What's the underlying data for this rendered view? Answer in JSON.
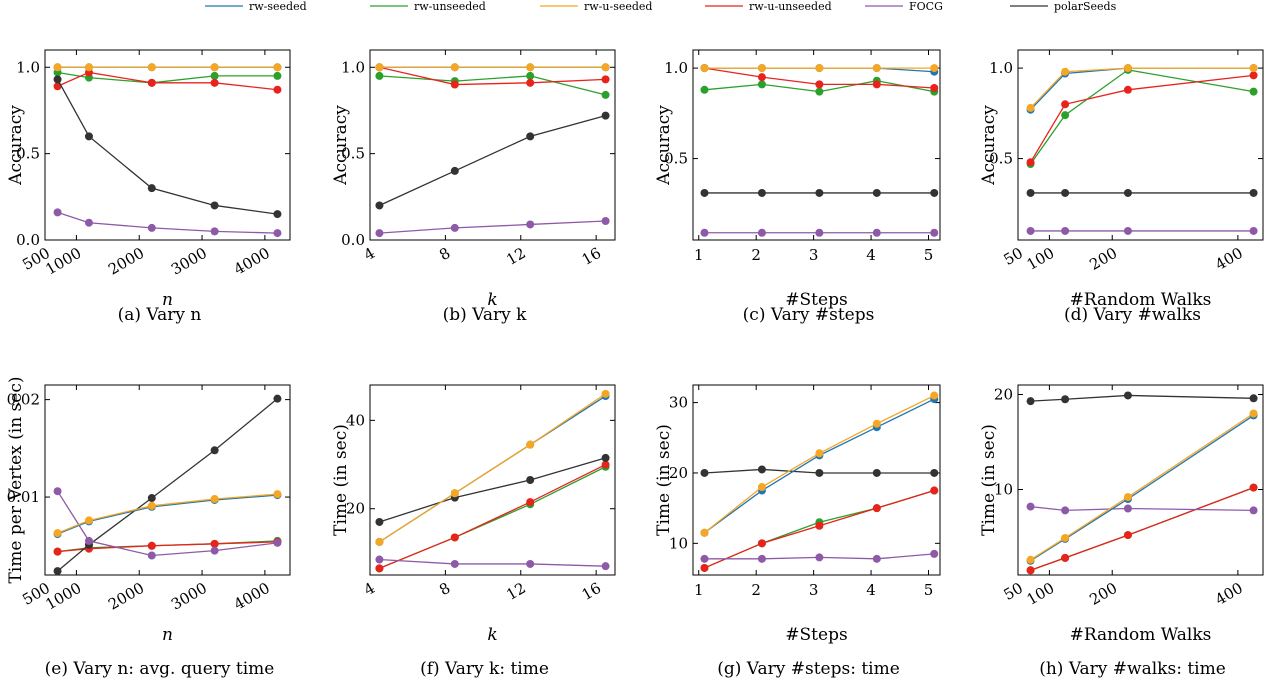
{
  "series_styles": [
    {
      "name": "rw-seeded",
      "color": "#1f77b4"
    },
    {
      "name": "rw-unseeded",
      "color": "#2ca02c"
    },
    {
      "name": "rw-u-seeded",
      "color": "#f5a623"
    },
    {
      "name": "rw-u-unseeded",
      "color": "#e8231c"
    },
    {
      "name": "FOCG",
      "color": "#8e5aa8"
    },
    {
      "name": "polarSeeds",
      "color": "#333333"
    }
  ],
  "chart_data": [
    {
      "type": "line",
      "caption": "(a) Vary n",
      "x": [
        700,
        1200,
        2200,
        3200,
        4200
      ],
      "xlim": [
        500,
        4400
      ],
      "xticks": [
        500,
        1000,
        2000,
        3000,
        4000
      ],
      "xtick_rotate": true,
      "ylim": [
        0,
        1.1
      ],
      "yticks": [
        0.0,
        0.5,
        1.0
      ],
      "ytick_labels": [
        "0.0",
        "0.5",
        "1.0"
      ],
      "xlabel": "n",
      "ylabel": "Accuracy",
      "series": [
        {
          "name": "rw-seeded",
          "values": [
            1.0,
            1.0,
            1.0,
            1.0,
            1.0
          ]
        },
        {
          "name": "rw-unseeded",
          "values": [
            0.97,
            0.94,
            0.91,
            0.95,
            0.95
          ]
        },
        {
          "name": "rw-u-seeded",
          "values": [
            1.0,
            1.0,
            1.0,
            1.0,
            1.0
          ]
        },
        {
          "name": "rw-u-unseeded",
          "values": [
            0.89,
            0.97,
            0.91,
            0.91,
            0.87
          ]
        },
        {
          "name": "FOCG",
          "values": [
            0.16,
            0.1,
            0.07,
            0.05,
            0.04
          ]
        },
        {
          "name": "polarSeeds",
          "values": [
            0.93,
            0.6,
            0.3,
            0.2,
            0.15
          ]
        }
      ]
    },
    {
      "type": "line",
      "caption": "(b) Vary k",
      "x": [
        4.5,
        8.5,
        12.5,
        16.5
      ],
      "xlim": [
        4,
        17
      ],
      "xticks": [
        4,
        8,
        12,
        16
      ],
      "xtick_rotate": true,
      "ylim": [
        0,
        1.1
      ],
      "yticks": [
        0.0,
        0.5,
        1.0
      ],
      "ytick_labels": [
        "0.0",
        "0.5",
        "1.0"
      ],
      "xlabel": "k",
      "ylabel": "Accuracy",
      "series": [
        {
          "name": "rw-seeded",
          "values": [
            1.0,
            1.0,
            1.0,
            1.0
          ]
        },
        {
          "name": "rw-unseeded",
          "values": [
            0.95,
            0.92,
            0.95,
            0.84
          ]
        },
        {
          "name": "rw-u-seeded",
          "values": [
            1.0,
            1.0,
            1.0,
            1.0
          ]
        },
        {
          "name": "rw-u-unseeded",
          "values": [
            1.0,
            0.9,
            0.91,
            0.93
          ]
        },
        {
          "name": "FOCG",
          "values": [
            0.04,
            0.07,
            0.09,
            0.11
          ]
        },
        {
          "name": "polarSeeds",
          "values": [
            0.2,
            0.4,
            0.6,
            0.72
          ]
        }
      ]
    },
    {
      "type": "line",
      "caption": "(c) Vary #steps",
      "x": [
        1.1,
        2.1,
        3.1,
        4.1,
        5.1
      ],
      "xlim": [
        0.9,
        5.2
      ],
      "xticks": [
        1,
        2,
        3,
        4,
        5
      ],
      "xtick_rotate": false,
      "ylim": [
        0.05,
        1.1
      ],
      "yticks": [
        0.5,
        1.0
      ],
      "ytick_labels": [
        "0.5",
        "1.0"
      ],
      "xlabel": "#Steps",
      "ylabel": "Accuracy",
      "series": [
        {
          "name": "rw-seeded",
          "values": [
            1.0,
            1.0,
            1.0,
            1.0,
            0.98
          ]
        },
        {
          "name": "rw-unseeded",
          "values": [
            0.88,
            0.91,
            0.87,
            0.93,
            0.87
          ]
        },
        {
          "name": "rw-u-seeded",
          "values": [
            1.0,
            1.0,
            1.0,
            1.0,
            1.0
          ]
        },
        {
          "name": "rw-u-unseeded",
          "values": [
            1.0,
            0.95,
            0.91,
            0.91,
            0.89
          ]
        },
        {
          "name": "FOCG",
          "values": [
            0.09,
            0.09,
            0.09,
            0.09,
            0.09
          ]
        },
        {
          "name": "polarSeeds",
          "values": [
            0.31,
            0.31,
            0.31,
            0.31,
            0.31
          ]
        }
      ]
    },
    {
      "type": "line",
      "caption": "(d) Vary #walks",
      "x": [
        70,
        125,
        225,
        425
      ],
      "xlim": [
        50,
        440
      ],
      "xticks": [
        50,
        100,
        200,
        400
      ],
      "xtick_rotate": true,
      "ylim": [
        0.05,
        1.1
      ],
      "yticks": [
        0.5,
        1.0
      ],
      "ytick_labels": [
        "0.5",
        "1.0"
      ],
      "xlabel": "#Random Walks",
      "ylabel": "Accuracy",
      "series": [
        {
          "name": "rw-seeded",
          "values": [
            0.77,
            0.97,
            1.0,
            1.0
          ]
        },
        {
          "name": "rw-unseeded",
          "values": [
            0.47,
            0.74,
            0.99,
            0.87
          ]
        },
        {
          "name": "rw-u-seeded",
          "values": [
            0.78,
            0.98,
            1.0,
            1.0
          ]
        },
        {
          "name": "rw-u-unseeded",
          "values": [
            0.48,
            0.8,
            0.88,
            0.96
          ]
        },
        {
          "name": "FOCG",
          "values": [
            0.1,
            0.1,
            0.1,
            0.1
          ]
        },
        {
          "name": "polarSeeds",
          "values": [
            0.31,
            0.31,
            0.31,
            0.31
          ]
        }
      ]
    },
    {
      "type": "line",
      "caption": "(e) Vary n: avg. query time",
      "x": [
        700,
        1200,
        2200,
        3200,
        4200
      ],
      "xlim": [
        500,
        4400
      ],
      "xticks": [
        500,
        1000,
        2000,
        3000,
        4000
      ],
      "xtick_rotate": true,
      "ylim": [
        0.002,
        0.0215
      ],
      "yticks": [
        0.01,
        0.02
      ],
      "ytick_labels": [
        "0.01",
        "0.02"
      ],
      "xlabel": "n",
      "ylabel": "Time per Vertex (in sec)",
      "series": [
        {
          "name": "rw-seeded",
          "values": [
            0.0062,
            0.0075,
            0.009,
            0.0097,
            0.0102
          ]
        },
        {
          "name": "rw-unseeded",
          "values": [
            0.0044,
            0.0048,
            0.005,
            0.0052,
            0.0055
          ]
        },
        {
          "name": "rw-u-seeded",
          "values": [
            0.0063,
            0.0076,
            0.0091,
            0.0098,
            0.0103
          ]
        },
        {
          "name": "rw-u-unseeded",
          "values": [
            0.0044,
            0.0047,
            0.005,
            0.0052,
            0.0054
          ]
        },
        {
          "name": "FOCG",
          "values": [
            0.0106,
            0.0055,
            0.004,
            0.0045,
            0.0053
          ]
        },
        {
          "name": "polarSeeds",
          "values": [
            0.0024,
            0.0051,
            0.0099,
            0.0148,
            0.0201
          ]
        }
      ]
    },
    {
      "type": "line",
      "caption": "(f) Vary k: time",
      "x": [
        4.5,
        8.5,
        12.5,
        16.5
      ],
      "xlim": [
        4,
        17
      ],
      "xticks": [
        4,
        8,
        12,
        16
      ],
      "xtick_rotate": true,
      "ylim": [
        5,
        48
      ],
      "yticks": [
        20,
        40
      ],
      "ytick_labels": [
        "20",
        "40"
      ],
      "xlabel": "k",
      "ylabel": "Time (in sec)",
      "series": [
        {
          "name": "rw-seeded",
          "values": [
            12.5,
            23.5,
            34.5,
            45.5
          ]
        },
        {
          "name": "rw-unseeded",
          "values": [
            6.5,
            13.5,
            21,
            29.5
          ]
        },
        {
          "name": "rw-u-seeded",
          "values": [
            12.5,
            23.5,
            34.5,
            46
          ]
        },
        {
          "name": "rw-u-unseeded",
          "values": [
            6.5,
            13.5,
            21.5,
            30
          ]
        },
        {
          "name": "FOCG",
          "values": [
            8.5,
            7.5,
            7.5,
            7
          ]
        },
        {
          "name": "polarSeeds",
          "values": [
            17,
            22.5,
            26.5,
            31.5
          ]
        }
      ]
    },
    {
      "type": "line",
      "caption": "(g) Vary #steps: time",
      "x": [
        1.1,
        2.1,
        3.1,
        4.1,
        5.1
      ],
      "xlim": [
        0.9,
        5.2
      ],
      "xticks": [
        1,
        2,
        3,
        4,
        5
      ],
      "xtick_rotate": false,
      "ylim": [
        5.5,
        32.5
      ],
      "yticks": [
        10,
        20,
        30
      ],
      "ytick_labels": [
        "10",
        "20",
        "30"
      ],
      "xlabel": "#Steps",
      "ylabel": "Time (in sec)",
      "series": [
        {
          "name": "rw-seeded",
          "values": [
            11.5,
            17.5,
            22.5,
            26.5,
            30.5
          ]
        },
        {
          "name": "rw-unseeded",
          "values": [
            6.5,
            10,
            13,
            15,
            17.5
          ]
        },
        {
          "name": "rw-u-seeded",
          "values": [
            11.5,
            18,
            22.8,
            27,
            31
          ]
        },
        {
          "name": "rw-u-unseeded",
          "values": [
            6.5,
            10,
            12.5,
            15,
            17.5
          ]
        },
        {
          "name": "FOCG",
          "values": [
            7.8,
            7.8,
            8,
            7.8,
            8.5
          ]
        },
        {
          "name": "polarSeeds",
          "values": [
            20,
            20.5,
            20,
            20,
            20
          ]
        }
      ]
    },
    {
      "type": "line",
      "caption": "(h) Vary #walks: time",
      "x": [
        70,
        125,
        225,
        425
      ],
      "xlim": [
        50,
        440
      ],
      "xticks": [
        50,
        100,
        200,
        400
      ],
      "xtick_rotate": true,
      "ylim": [
        1,
        21
      ],
      "yticks": [
        10,
        20
      ],
      "ytick_labels": [
        "10",
        "20"
      ],
      "xlabel": "#Random Walks",
      "ylabel": "Time (in sec)",
      "series": [
        {
          "name": "rw-seeded",
          "values": [
            2.5,
            4.8,
            9,
            17.8
          ]
        },
        {
          "name": "rw-unseeded",
          "values": [
            1.5,
            2.8,
            5.2,
            10.2
          ]
        },
        {
          "name": "rw-u-seeded",
          "values": [
            2.6,
            4.9,
            9.2,
            18
          ]
        },
        {
          "name": "rw-u-unseeded",
          "values": [
            1.5,
            2.8,
            5.2,
            10.2
          ]
        },
        {
          "name": "FOCG",
          "values": [
            8.2,
            7.8,
            8,
            7.8
          ]
        },
        {
          "name": "polarSeeds",
          "values": [
            19.3,
            19.5,
            19.9,
            19.6
          ]
        }
      ]
    }
  ]
}
